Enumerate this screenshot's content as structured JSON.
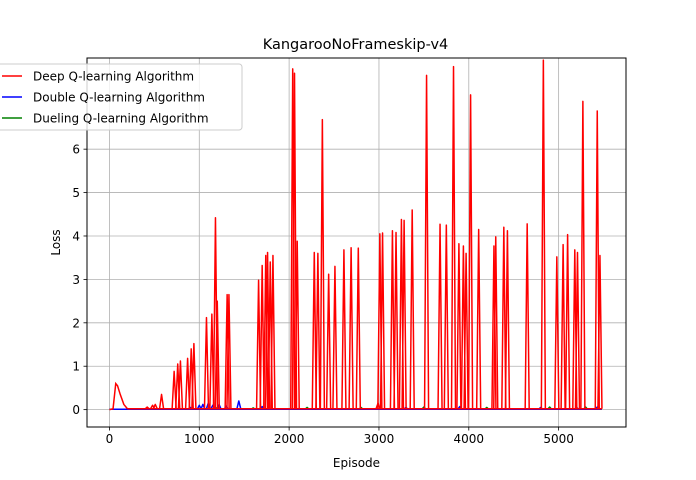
{
  "chart_data": {
    "type": "line",
    "title": "KangarooNoFrameskip-v4",
    "xlabel": "Episode",
    "ylabel": "Loss",
    "xlim": [
      -250,
      5750
    ],
    "ylim": [
      -0.4,
      8.1
    ],
    "x_ticks": [
      0,
      1000,
      2000,
      3000,
      4000,
      5000
    ],
    "y_ticks": [
      0,
      1,
      2,
      3,
      4,
      5,
      6
    ],
    "grid": true,
    "legend_position": "upper-left",
    "series": [
      {
        "name": "Deep Q-learning Algorithm",
        "color": "#ff0000",
        "baseline": 0.02,
        "x_max": 5480,
        "onset": {
          "x": [
            0,
            40,
            70,
            90,
            120,
            160,
            200
          ],
          "y": [
            0.0,
            0.02,
            0.6,
            0.55,
            0.35,
            0.12,
            0.02
          ]
        },
        "spikes": [
          {
            "x": 420,
            "y": 0.06
          },
          {
            "x": 480,
            "y": 0.1
          },
          {
            "x": 510,
            "y": 0.12
          },
          {
            "x": 580,
            "y": 0.35
          },
          {
            "x": 720,
            "y": 0.88
          },
          {
            "x": 760,
            "y": 1.05
          },
          {
            "x": 790,
            "y": 1.12
          },
          {
            "x": 870,
            "y": 1.18
          },
          {
            "x": 910,
            "y": 1.4
          },
          {
            "x": 940,
            "y": 1.52
          },
          {
            "x": 1080,
            "y": 2.12
          },
          {
            "x": 1140,
            "y": 2.2
          },
          {
            "x": 1180,
            "y": 4.42
          },
          {
            "x": 1200,
            "y": 2.5
          },
          {
            "x": 1310,
            "y": 2.65
          },
          {
            "x": 1330,
            "y": 2.65
          },
          {
            "x": 1660,
            "y": 2.98
          },
          {
            "x": 1700,
            "y": 3.32
          },
          {
            "x": 1740,
            "y": 3.55
          },
          {
            "x": 1760,
            "y": 3.62
          },
          {
            "x": 1790,
            "y": 3.4
          },
          {
            "x": 1820,
            "y": 3.55
          },
          {
            "x": 2040,
            "y": 7.85
          },
          {
            "x": 2060,
            "y": 7.75
          },
          {
            "x": 2090,
            "y": 3.88
          },
          {
            "x": 2280,
            "y": 3.62
          },
          {
            "x": 2320,
            "y": 3.6
          },
          {
            "x": 2370,
            "y": 6.68
          },
          {
            "x": 2440,
            "y": 3.12
          },
          {
            "x": 2510,
            "y": 3.3
          },
          {
            "x": 2610,
            "y": 3.68
          },
          {
            "x": 2690,
            "y": 3.73
          },
          {
            "x": 2770,
            "y": 3.72
          },
          {
            "x": 2990,
            "y": 0.15
          },
          {
            "x": 3010,
            "y": 4.05
          },
          {
            "x": 3040,
            "y": 4.07
          },
          {
            "x": 3150,
            "y": 4.12
          },
          {
            "x": 3190,
            "y": 4.08
          },
          {
            "x": 3250,
            "y": 4.38
          },
          {
            "x": 3280,
            "y": 4.36
          },
          {
            "x": 3370,
            "y": 4.6
          },
          {
            "x": 3530,
            "y": 7.7
          },
          {
            "x": 3680,
            "y": 4.27
          },
          {
            "x": 3750,
            "y": 4.25
          },
          {
            "x": 3830,
            "y": 7.9
          },
          {
            "x": 3890,
            "y": 3.82
          },
          {
            "x": 3940,
            "y": 3.77
          },
          {
            "x": 3970,
            "y": 3.6
          },
          {
            "x": 4020,
            "y": 7.25
          },
          {
            "x": 4110,
            "y": 4.15
          },
          {
            "x": 4280,
            "y": 3.77
          },
          {
            "x": 4300,
            "y": 3.98
          },
          {
            "x": 4390,
            "y": 4.2
          },
          {
            "x": 4430,
            "y": 4.12
          },
          {
            "x": 4650,
            "y": 4.28
          },
          {
            "x": 4830,
            "y": 8.05
          },
          {
            "x": 4980,
            "y": 3.52
          },
          {
            "x": 5050,
            "y": 3.8
          },
          {
            "x": 5100,
            "y": 4.03
          },
          {
            "x": 5180,
            "y": 3.68
          },
          {
            "x": 5210,
            "y": 3.62
          },
          {
            "x": 5270,
            "y": 7.1
          },
          {
            "x": 5430,
            "y": 6.88
          },
          {
            "x": 5460,
            "y": 3.55
          }
        ]
      },
      {
        "name": "Double Q-learning Algorithm",
        "color": "#0000ff",
        "baseline": 0.01,
        "x_max": 5480,
        "spikes": [
          {
            "x": 900,
            "y": 0.05
          },
          {
            "x": 1000,
            "y": 0.1
          },
          {
            "x": 1040,
            "y": 0.12
          },
          {
            "x": 1100,
            "y": 0.15
          },
          {
            "x": 1150,
            "y": 0.1
          },
          {
            "x": 1220,
            "y": 0.12
          },
          {
            "x": 1300,
            "y": 0.08
          },
          {
            "x": 1440,
            "y": 0.2
          },
          {
            "x": 1700,
            "y": 0.07
          },
          {
            "x": 3300,
            "y": 0.05
          },
          {
            "x": 3900,
            "y": 0.07
          },
          {
            "x": 4800,
            "y": 0.05
          },
          {
            "x": 5200,
            "y": 0.05
          },
          {
            "x": 5430,
            "y": 0.06
          }
        ]
      },
      {
        "name": "Dueling Q-learning Algorithm",
        "color": "#008000",
        "baseline": 0.01,
        "x_max": 5480,
        "spikes": [
          {
            "x": 1200,
            "y": 0.05
          },
          {
            "x": 1600,
            "y": 0.04
          },
          {
            "x": 2200,
            "y": 0.05
          },
          {
            "x": 2800,
            "y": 0.05
          },
          {
            "x": 3500,
            "y": 0.06
          },
          {
            "x": 4200,
            "y": 0.05
          },
          {
            "x": 4900,
            "y": 0.06
          },
          {
            "x": 5300,
            "y": 0.06
          }
        ]
      }
    ]
  }
}
